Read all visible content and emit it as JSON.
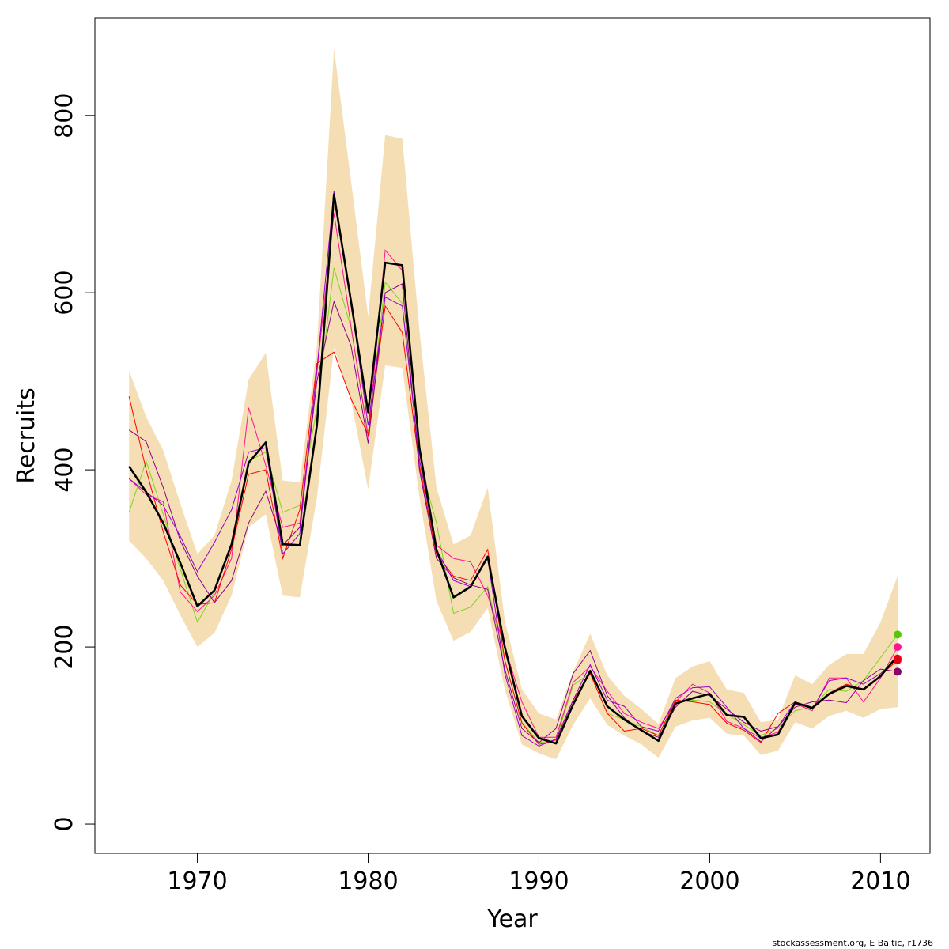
{
  "chart_data": {
    "type": "line",
    "title": "",
    "xlabel": "Year",
    "ylabel": "Recruits",
    "credit": "stockassessment.org, E Baltic, r1736",
    "xlim": [
      1964.0,
      2012.9
    ],
    "ylim": [
      -33,
      910
    ],
    "x_ticks": [
      1970,
      1980,
      1990,
      2000,
      2010
    ],
    "y_ticks": [
      0,
      200,
      400,
      600,
      800
    ],
    "colors": {
      "band": "#f5deb3",
      "main": "#000000",
      "retro": [
        "#7fd320",
        "#ff1493",
        "#ff0000",
        "#8b008b",
        "#9400d3"
      ]
    },
    "x": [
      1966,
      1967,
      1968,
      1969,
      1970,
      1971,
      1972,
      1973,
      1974,
      1975,
      1976,
      1977,
      1978,
      1979,
      1980,
      1981,
      1982,
      1983,
      1984,
      1985,
      1986,
      1987,
      1988,
      1989,
      1990,
      1991,
      1992,
      1993,
      1994,
      1995,
      1996,
      1997,
      1998,
      1999,
      2000,
      2001,
      2002,
      2003,
      2004,
      2005,
      2006,
      2007,
      2008,
      2009,
      2010,
      2011
    ],
    "band_upper": [
      512,
      460,
      422,
      362,
      305,
      326,
      388,
      502,
      532,
      388,
      386,
      540,
      876,
      726,
      573,
      778,
      774,
      558,
      380,
      316,
      326,
      380,
      230,
      152,
      125,
      118,
      172,
      215,
      168,
      145,
      130,
      113,
      165,
      178,
      184,
      152,
      148,
      115,
      118,
      168,
      158,
      180,
      192,
      192,
      228,
      280
    ],
    "band_lower": [
      320,
      300,
      275,
      236,
      200,
      216,
      258,
      335,
      350,
      258,
      256,
      368,
      538,
      478,
      378,
      518,
      515,
      370,
      252,
      207,
      217,
      244,
      152,
      90,
      80,
      73,
      112,
      142,
      112,
      100,
      90,
      75,
      110,
      117,
      120,
      102,
      100,
      78,
      83,
      115,
      108,
      122,
      128,
      120,
      130,
      132
    ],
    "series": [
      {
        "values": [
          404,
          375,
          340,
          295,
          246,
          264,
          316,
          408,
          431,
          316,
          315,
          450,
          711,
          590,
          465,
          634,
          631,
          425,
          310,
          256,
          268,
          302,
          200,
          122,
          97,
          91,
          135,
          173,
          133,
          118,
          106,
          94,
          136,
          142,
          147,
          123,
          121,
          97,
          101,
          137,
          131,
          147,
          156,
          152,
          167,
          190
        ]
      },
      {
        "values": [
          352,
          410,
          350,
          288,
          228,
          262,
          318,
          410,
          420,
          352,
          360,
          470,
          628,
          560,
          440,
          612,
          588,
          410,
          340,
          238,
          245,
          268,
          185,
          115,
          92,
          95,
          157,
          170,
          125,
          118,
          110,
          100,
          138,
          140,
          138,
          124,
          112,
          100,
          108,
          128,
          132,
          152,
          150,
          162,
          188,
          214
        ]
      },
      {
        "values": [
          390,
          372,
          364,
          262,
          240,
          258,
          300,
          470,
          405,
          335,
          340,
          510,
          690,
          562,
          437,
          648,
          625,
          420,
          315,
          300,
          296,
          258,
          200,
          138,
          98,
          98,
          160,
          178,
          150,
          125,
          115,
          108,
          138,
          158,
          148,
          116,
          108,
          97,
          104,
          136,
          128,
          165,
          165,
          138,
          165,
          200
        ]
      },
      {
        "values": [
          483,
          400,
          330,
          270,
          248,
          250,
          310,
          395,
          400,
          300,
          355,
          520,
          533,
          480,
          440,
          585,
          555,
          405,
          305,
          280,
          275,
          310,
          185,
          114,
          90,
          95,
          140,
          170,
          125,
          105,
          108,
          100,
          140,
          138,
          135,
          114,
          106,
          92,
          125,
          138,
          132,
          148,
          158,
          152,
          168,
          185
        ]
      },
      {
        "values": [
          445,
          432,
          380,
          320,
          280,
          250,
          275,
          340,
          376,
          315,
          335,
          500,
          590,
          540,
          430,
          600,
          610,
          400,
          300,
          278,
          270,
          265,
          175,
          108,
          92,
          108,
          170,
          196,
          145,
          120,
          105,
          98,
          132,
          150,
          145,
          130,
          115,
          105,
          110,
          132,
          138,
          140,
          137,
          162,
          175,
          172
        ]
      },
      {
        "values": [
          390,
          375,
          360,
          325,
          285,
          318,
          355,
          420,
          425,
          305,
          328,
          513,
          715,
          590,
          450,
          595,
          585,
          412,
          310,
          275,
          268,
          300,
          170,
          100,
          88,
          96,
          140,
          180,
          140,
          133,
          110,
          105,
          142,
          154,
          155,
          132,
          108,
          93,
          110,
          138,
          130,
          162,
          165,
          158,
          170,
          187
        ]
      }
    ],
    "end_points": [
      {
        "x": 2011,
        "y": 214,
        "color": "#55c80a"
      },
      {
        "x": 2011,
        "y": 200,
        "color": "#ff1493"
      },
      {
        "x": 2011,
        "y": 187,
        "color": "#ff0000"
      },
      {
        "x": 2011,
        "y": 185,
        "color": "#e0001a"
      },
      {
        "x": 2011,
        "y": 172,
        "color": "#8b006b"
      }
    ]
  }
}
